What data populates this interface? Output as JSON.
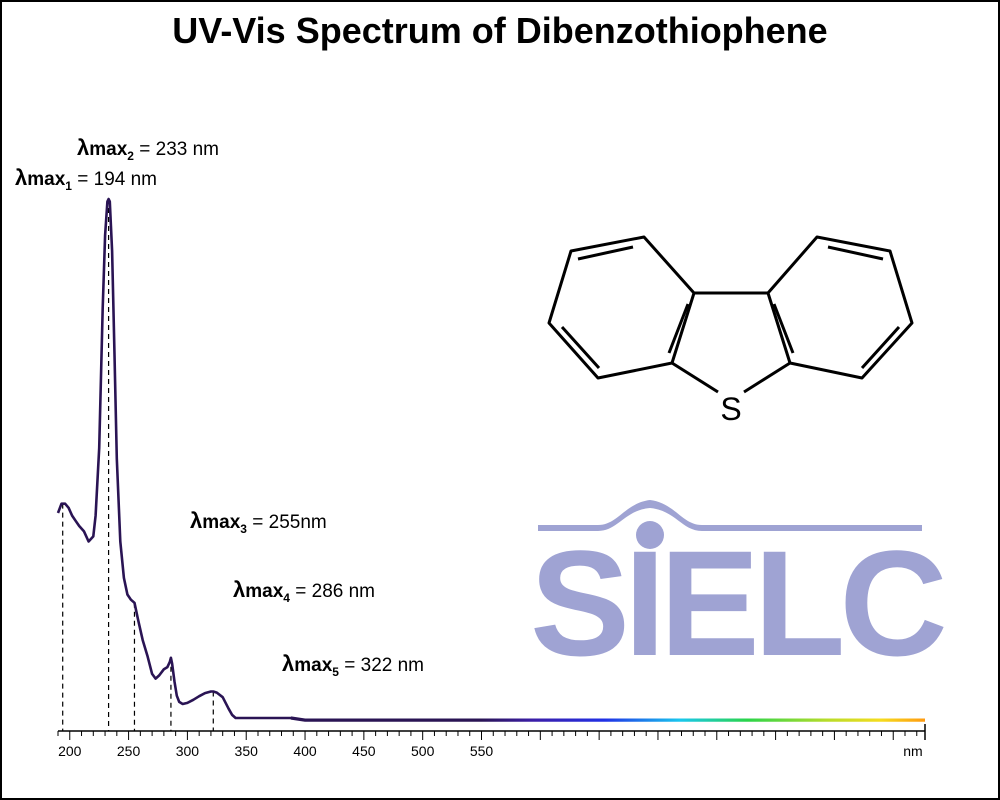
{
  "colors": {
    "curve": "#2a1454",
    "logo": "#9fa3d3",
    "axis": "#000000"
  },
  "logo": {
    "text": "SIELC"
  },
  "molecule": {
    "heteroatom": "S"
  },
  "chart_data": {
    "type": "line",
    "title": "UV-Vis Spectrum of Dibenzothiophene",
    "xlabel": "",
    "ylabel": "",
    "x_unit": "nm",
    "xlim": [
      190,
      927
    ],
    "ylim": [
      0,
      1
    ],
    "x_ticks": [
      200,
      250,
      300,
      350,
      400,
      450,
      500,
      550
    ],
    "legend": "none",
    "grid": false,
    "series": [
      {
        "x": [
          190,
          193,
          196,
          199,
          202,
          205,
          208,
          212,
          216,
          220,
          222,
          225,
          228,
          230,
          232,
          233,
          234,
          236,
          238,
          240,
          243,
          246,
          249,
          252,
          255,
          258,
          262,
          266,
          270,
          273,
          276,
          280,
          283,
          285,
          286,
          287,
          289,
          291,
          293,
          296,
          300,
          305,
          310,
          315,
          320,
          322,
          325,
          330,
          335,
          338,
          341,
          345,
          360,
          388,
          400,
          500,
          600,
          700,
          800,
          927
        ],
        "y": [
          0.395,
          0.413,
          0.413,
          0.405,
          0.39,
          0.38,
          0.37,
          0.36,
          0.34,
          0.35,
          0.39,
          0.52,
          0.79,
          0.93,
          0.995,
          1.0,
          0.995,
          0.9,
          0.7,
          0.5,
          0.34,
          0.27,
          0.238,
          0.228,
          0.222,
          0.19,
          0.15,
          0.12,
          0.085,
          0.076,
          0.082,
          0.094,
          0.098,
          0.108,
          0.116,
          0.105,
          0.07,
          0.043,
          0.031,
          0.027,
          0.029,
          0.035,
          0.042,
          0.048,
          0.051,
          0.051,
          0.049,
          0.04,
          0.018,
          0.006,
          0.0,
          0.0,
          0.0,
          0.0,
          -0.004,
          -0.004,
          -0.004,
          -0.004,
          -0.004,
          -0.004
        ]
      }
    ],
    "annotations": [
      {
        "prefix": "λ",
        "main": "max",
        "sub": "1",
        "value": "= 194 nm",
        "x": 194
      },
      {
        "prefix": "λ",
        "main": "max",
        "sub": "2",
        "value": "= 233 nm",
        "x": 233
      },
      {
        "prefix": "λ",
        "main": "max",
        "sub": "3",
        "value": "= 255nm",
        "x": 255
      },
      {
        "prefix": "λ",
        "main": "max",
        "sub": "4",
        "value": "= 286 nm",
        "x": 286
      },
      {
        "prefix": "λ",
        "main": "max",
        "sub": "5",
        "value": "= 322 nm",
        "x": 322
      }
    ]
  }
}
